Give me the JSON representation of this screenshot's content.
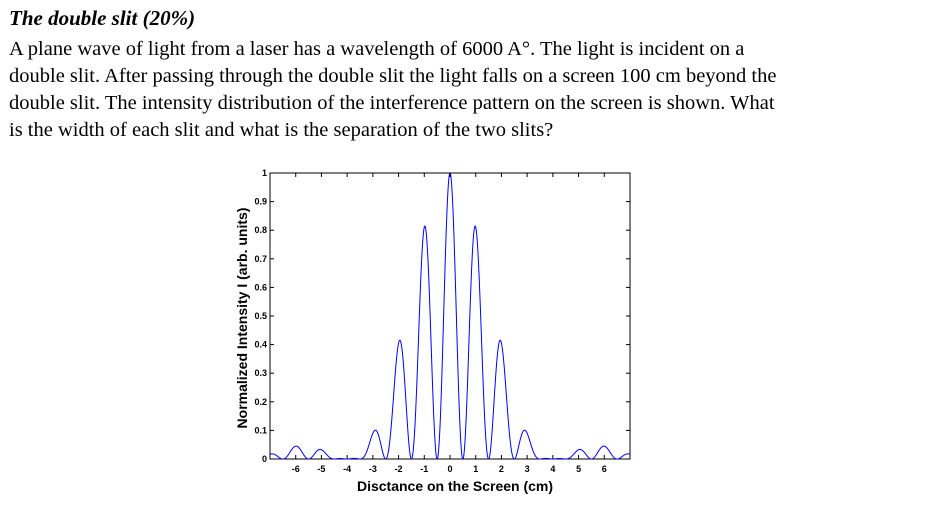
{
  "problem": {
    "title": "The double slit (20%)",
    "lines": [
      "A plane wave of light from a laser has a wavelength of 6000 A°. The light is incident on a",
      "double slit. After passing through the double slit the light falls on a screen 100 cm beyond the",
      "double slit. The intensity distribution of the interference pattern on the screen is shown. What",
      "is the width of each slit and what is the separation of the two slits?"
    ]
  },
  "chart_data": {
    "type": "line",
    "xlabel": "Disctance on the Screen (cm)",
    "ylabel": "Normalized Intensity I (arb. units)",
    "xlim": [
      -7,
      7
    ],
    "ylim": [
      0,
      1
    ],
    "xticks": [
      -6,
      -5,
      -4,
      -3,
      -2,
      -1,
      0,
      1,
      2,
      3,
      4,
      5,
      6
    ],
    "yticks": [
      0,
      0.1,
      0.2,
      0.3,
      0.4,
      0.5,
      0.6,
      0.7,
      0.8,
      0.9,
      1
    ],
    "ytick_labels": [
      "0",
      "0.1",
      "0.2",
      "0.3",
      "0.4",
      "0.5",
      "0.6",
      "0.7",
      "0.8",
      "0.9",
      "1"
    ],
    "grid": false,
    "line_color": "#0000ff",
    "fringe_spacing": 1,
    "first_diffraction_minimum": 4,
    "peaks": {
      "x": [
        -6,
        -5,
        -3,
        -2,
        -1,
        0,
        1,
        2,
        3,
        5,
        6
      ],
      "y": [
        0.05,
        0.05,
        0.1,
        0.4,
        0.8,
        1.0,
        0.8,
        0.4,
        0.1,
        0.05,
        0.05
      ]
    }
  }
}
